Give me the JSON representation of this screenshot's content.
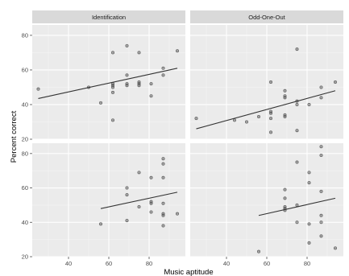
{
  "chart_data": {
    "type": "scatter",
    "xlabel": "Music aptitude",
    "ylabel": "Percent correct",
    "x_ticks": [
      40,
      60,
      80
    ],
    "y_ticks": [
      20,
      40,
      60,
      80
    ],
    "xlim": [
      22,
      98
    ],
    "ylim": [
      20,
      86
    ],
    "colors": {
      "panel_bg": "#ebebeb",
      "grid_major": "#ffffff",
      "grid_minor": "#f5f5f5",
      "strip_bg": "#d9d9d9",
      "point_fill": "#4d4d4d",
      "fit_line": "#333333"
    },
    "column_labels": [
      "Identification",
      "Odd-One-Out"
    ],
    "panels": [
      {
        "row": 0,
        "col": 0,
        "points": [
          [
            25,
            49
          ],
          [
            50,
            50
          ],
          [
            56,
            41
          ],
          [
            62,
            31
          ],
          [
            62,
            47
          ],
          [
            62,
            50
          ],
          [
            62,
            51
          ],
          [
            62,
            52
          ],
          [
            62,
            70
          ],
          [
            69,
            51
          ],
          [
            69,
            52
          ],
          [
            69,
            57
          ],
          [
            69,
            74
          ],
          [
            75,
            51
          ],
          [
            75,
            52
          ],
          [
            75,
            53
          ],
          [
            75,
            70
          ],
          [
            81,
            45
          ],
          [
            81,
            52
          ],
          [
            87,
            57
          ],
          [
            87,
            61
          ],
          [
            94,
            71
          ]
        ],
        "fit": [
          [
            25,
            43.5
          ],
          [
            94,
            61
          ]
        ]
      },
      {
        "row": 0,
        "col": 1,
        "points": [
          [
            25,
            32
          ],
          [
            44,
            31
          ],
          [
            50,
            30
          ],
          [
            56,
            33
          ],
          [
            62,
            24
          ],
          [
            62,
            32
          ],
          [
            62,
            35
          ],
          [
            62,
            36
          ],
          [
            62,
            53
          ],
          [
            69,
            33
          ],
          [
            69,
            34
          ],
          [
            69,
            44
          ],
          [
            69,
            45
          ],
          [
            69,
            48
          ],
          [
            75,
            25
          ],
          [
            75,
            40
          ],
          [
            75,
            42
          ],
          [
            75,
            72
          ],
          [
            81,
            40
          ],
          [
            87,
            44
          ],
          [
            87,
            50
          ],
          [
            94,
            53
          ]
        ],
        "fit": [
          [
            25,
            26
          ],
          [
            94,
            48
          ]
        ]
      },
      {
        "row": 1,
        "col": 0,
        "points": [
          [
            56,
            39
          ],
          [
            69,
            41
          ],
          [
            69,
            56
          ],
          [
            69,
            60
          ],
          [
            75,
            49
          ],
          [
            75,
            69
          ],
          [
            81,
            46
          ],
          [
            81,
            51
          ],
          [
            81,
            52
          ],
          [
            81,
            66
          ],
          [
            87,
            38
          ],
          [
            87,
            44
          ],
          [
            87,
            45
          ],
          [
            87,
            51
          ],
          [
            87,
            66
          ],
          [
            87,
            74
          ],
          [
            87,
            77
          ],
          [
            94,
            45
          ]
        ],
        "fit": [
          [
            56,
            48
          ],
          [
            94,
            57.5
          ]
        ]
      },
      {
        "row": 1,
        "col": 1,
        "points": [
          [
            56,
            23
          ],
          [
            69,
            47
          ],
          [
            69,
            48
          ],
          [
            69,
            49
          ],
          [
            69,
            54
          ],
          [
            69,
            59
          ],
          [
            75,
            40
          ],
          [
            75,
            50
          ],
          [
            75,
            75
          ],
          [
            81,
            28
          ],
          [
            81,
            39
          ],
          [
            81,
            63
          ],
          [
            81,
            69
          ],
          [
            87,
            32
          ],
          [
            87,
            40
          ],
          [
            87,
            44
          ],
          [
            87,
            58
          ],
          [
            87,
            79
          ],
          [
            87,
            84
          ],
          [
            94,
            25
          ]
        ],
        "fit": [
          [
            56,
            44
          ],
          [
            94,
            54
          ]
        ]
      }
    ]
  }
}
